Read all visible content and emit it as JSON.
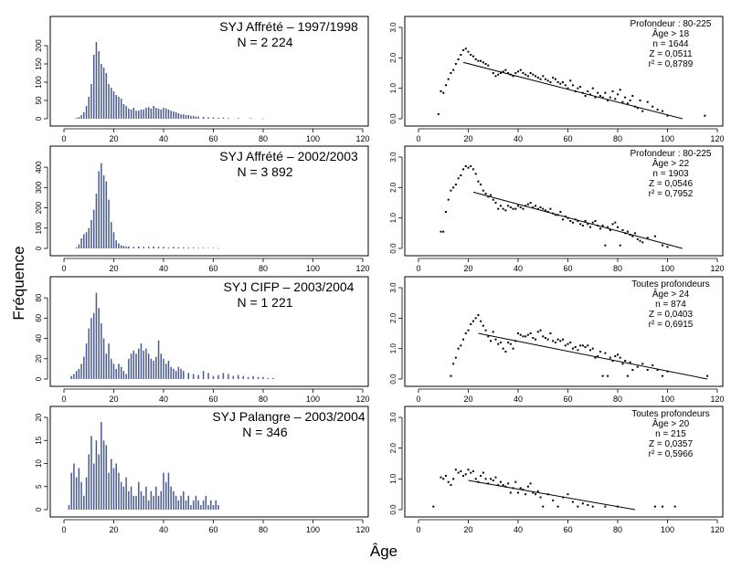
{
  "figure": {
    "ylabel": "Fréquence",
    "xlabel": "Âge"
  },
  "chart_data": [
    {
      "type": "bar",
      "title": "SYJ Affrété – 1997/1998",
      "subtitle": "N = 2 224",
      "xlim": [
        0,
        120
      ],
      "ylim": [
        0,
        250
      ],
      "xticks": [
        0,
        20,
        40,
        60,
        80,
        100,
        120
      ],
      "yticks": [
        0,
        50,
        100,
        150,
        200
      ],
      "x": [
        5,
        6,
        7,
        8,
        9,
        10,
        11,
        12,
        13,
        14,
        15,
        16,
        17,
        18,
        19,
        20,
        21,
        22,
        23,
        24,
        25,
        26,
        27,
        28,
        29,
        30,
        31,
        32,
        33,
        34,
        35,
        36,
        37,
        38,
        39,
        40,
        41,
        42,
        43,
        44,
        45,
        46,
        47,
        48,
        49,
        50,
        51,
        52,
        53,
        54,
        56,
        58,
        60,
        62,
        64,
        66,
        70,
        75,
        80
      ],
      "values": [
        2,
        5,
        10,
        18,
        35,
        60,
        95,
        175,
        210,
        185,
        150,
        140,
        125,
        95,
        85,
        75,
        65,
        60,
        55,
        40,
        35,
        28,
        25,
        30,
        22,
        22,
        25,
        25,
        30,
        32,
        28,
        35,
        30,
        28,
        25,
        30,
        28,
        25,
        22,
        20,
        18,
        15,
        12,
        12,
        10,
        10,
        8,
        8,
        6,
        6,
        5,
        4,
        4,
        3,
        3,
        2,
        2,
        2,
        1
      ]
    },
    {
      "type": "scatter",
      "annotation": [
        "Profondeur : 80-225",
        "Âge > 18",
        "n = 1644",
        "Z = 0,0511",
        "r² = 0,8789"
      ],
      "xlim": [
        0,
        120
      ],
      "ylim": [
        0,
        3
      ],
      "xticks": [
        0,
        20,
        40,
        60,
        80,
        100,
        120
      ],
      "yticks": [
        0.0,
        1.0,
        2.0,
        3.0
      ],
      "x": [
        8,
        9,
        10,
        11,
        12,
        13,
        14,
        15,
        16,
        17,
        18,
        19,
        20,
        21,
        22,
        23,
        24,
        25,
        26,
        27,
        28,
        30,
        31,
        32,
        33,
        34,
        35,
        36,
        37,
        38,
        39,
        40,
        41,
        42,
        43,
        44,
        45,
        46,
        47,
        48,
        49,
        50,
        51,
        52,
        53,
        54,
        55,
        56,
        57,
        58,
        59,
        60,
        61,
        62,
        63,
        64,
        65,
        66,
        67,
        68,
        69,
        70,
        71,
        72,
        73,
        74,
        75,
        76,
        77,
        78,
        79,
        80,
        81,
        82,
        83,
        84,
        85,
        86,
        87,
        88,
        89,
        90,
        92,
        94,
        96,
        98,
        100,
        115
      ],
      "y": [
        0.15,
        0.9,
        0.85,
        1.1,
        1.3,
        1.5,
        1.6,
        1.8,
        1.95,
        2.1,
        2.25,
        2.3,
        2.2,
        2.1,
        2.05,
        1.95,
        1.9,
        1.9,
        1.85,
        1.8,
        1.75,
        1.5,
        1.4,
        1.45,
        1.5,
        1.55,
        1.6,
        1.5,
        1.45,
        1.4,
        1.5,
        1.55,
        1.6,
        1.5,
        1.45,
        1.4,
        1.5,
        1.45,
        1.4,
        1.35,
        1.3,
        1.4,
        1.3,
        1.25,
        1.2,
        1.35,
        1.3,
        1.2,
        1.15,
        1.2,
        1.1,
        1.0,
        1.25,
        1.1,
        0.9,
        1.0,
        1.05,
        0.85,
        0.75,
        0.9,
        0.8,
        1.0,
        0.7,
        0.85,
        0.75,
        0.7,
        0.85,
        0.6,
        0.7,
        0.9,
        0.65,
        0.8,
        0.95,
        0.55,
        0.7,
        0.5,
        0.6,
        0.75,
        0.4,
        0.35,
        0.6,
        0.25,
        0.55,
        0.4,
        0.3,
        0.25,
        0.1,
        0.1
      ],
      "fit": {
        "x": [
          18,
          106
        ],
        "y": [
          1.85,
          0.0
        ]
      }
    },
    {
      "type": "bar",
      "title": "SYJ Affrété – 2002/2003",
      "subtitle": "N = 3 892",
      "xlim": [
        0,
        120
      ],
      "ylim": [
        0,
        450
      ],
      "xticks": [
        0,
        20,
        40,
        60,
        80,
        100,
        120
      ],
      "yticks": [
        0,
        100,
        200,
        300,
        400
      ],
      "x": [
        5,
        6,
        7,
        8,
        9,
        10,
        11,
        12,
        13,
        14,
        15,
        16,
        17,
        18,
        19,
        20,
        21,
        22,
        23,
        24,
        25,
        26,
        28,
        30,
        32,
        34,
        36,
        38,
        40,
        42,
        44,
        46,
        48,
        50,
        52,
        54,
        56,
        58,
        60,
        62
      ],
      "values": [
        5,
        20,
        50,
        70,
        80,
        100,
        140,
        190,
        270,
        380,
        420,
        360,
        330,
        240,
        130,
        80,
        40,
        25,
        15,
        12,
        10,
        10,
        8,
        10,
        8,
        8,
        10,
        8,
        8,
        5,
        8,
        6,
        5,
        4,
        4,
        3,
        3,
        2,
        2,
        1
      ]
    },
    {
      "type": "scatter",
      "annotation": [
        "Profondeur : 80-225",
        "Âge > 22",
        "n = 1903",
        "Z = 0,0546",
        "r² = 0,7952"
      ],
      "xlim": [
        0,
        120
      ],
      "ylim": [
        0,
        3
      ],
      "xticks": [
        0,
        20,
        40,
        60,
        80,
        100,
        120
      ],
      "yticks": [
        0.0,
        1.0,
        2.0,
        3.0
      ],
      "x": [
        9,
        10,
        11,
        12,
        13,
        14,
        15,
        16,
        17,
        18,
        19,
        20,
        21,
        22,
        23,
        24,
        25,
        26,
        27,
        28,
        29,
        30,
        31,
        32,
        33,
        34,
        35,
        36,
        37,
        38,
        39,
        40,
        41,
        42,
        43,
        44,
        45,
        46,
        47,
        48,
        49,
        50,
        51,
        52,
        53,
        54,
        55,
        56,
        57,
        58,
        59,
        60,
        61,
        62,
        63,
        64,
        65,
        66,
        67,
        68,
        69,
        70,
        71,
        72,
        73,
        74,
        75,
        76,
        77,
        78,
        79,
        80,
        81,
        82,
        83,
        84,
        85,
        86,
        87,
        88,
        89,
        90,
        92,
        95,
        98,
        100
      ],
      "y": [
        0.55,
        0.55,
        1.2,
        1.6,
        1.9,
        2.0,
        2.1,
        2.3,
        2.4,
        2.6,
        2.7,
        2.65,
        2.7,
        2.6,
        2.45,
        2.2,
        2.1,
        1.9,
        1.8,
        1.7,
        1.75,
        1.6,
        1.5,
        1.3,
        1.4,
        1.3,
        1.25,
        1.4,
        1.35,
        1.3,
        1.3,
        1.4,
        1.35,
        1.3,
        1.4,
        1.45,
        1.5,
        1.35,
        1.4,
        1.3,
        1.35,
        1.3,
        1.25,
        1.2,
        1.3,
        1.15,
        1.1,
        1.1,
        1.2,
        0.95,
        1.05,
        1.0,
        0.9,
        0.85,
        0.95,
        0.9,
        0.8,
        0.75,
        0.9,
        0.8,
        0.7,
        0.85,
        0.9,
        0.75,
        0.65,
        0.75,
        0.1,
        0.7,
        0.6,
        0.8,
        0.85,
        0.7,
        0.1,
        0.6,
        0.5,
        0.55,
        0.45,
        0.4,
        0.5,
        0.3,
        0.25,
        0.2,
        0.35,
        0.4,
        0.1,
        0.05
      ],
      "fit": {
        "x": [
          22,
          106
        ],
        "y": [
          1.85,
          0.0
        ]
      }
    },
    {
      "type": "bar",
      "title": "SYJ CIFP – 2003/2004",
      "subtitle": "N = 1 221",
      "xlim": [
        0,
        120
      ],
      "ylim": [
        0,
        90
      ],
      "xticks": [
        0,
        20,
        40,
        60,
        80,
        100,
        120
      ],
      "yticks": [
        0,
        20,
        40,
        60,
        80
      ],
      "x": [
        3,
        4,
        5,
        6,
        7,
        8,
        9,
        10,
        11,
        12,
        13,
        14,
        15,
        16,
        17,
        18,
        19,
        20,
        21,
        22,
        23,
        24,
        25,
        26,
        27,
        28,
        29,
        30,
        31,
        32,
        33,
        34,
        35,
        36,
        37,
        38,
        39,
        40,
        41,
        42,
        43,
        44,
        45,
        46,
        47,
        48,
        50,
        52,
        54,
        56,
        58,
        60,
        62,
        64,
        66,
        68,
        70,
        72,
        74,
        76,
        78,
        80,
        82,
        84
      ],
      "values": [
        3,
        5,
        8,
        10,
        15,
        22,
        35,
        50,
        60,
        65,
        85,
        70,
        55,
        40,
        25,
        35,
        20,
        15,
        10,
        15,
        12,
        8,
        5,
        20,
        25,
        28,
        25,
        30,
        35,
        28,
        30,
        25,
        20,
        18,
        22,
        38,
        25,
        20,
        15,
        18,
        12,
        10,
        8,
        12,
        10,
        8,
        6,
        5,
        4,
        8,
        6,
        3,
        4,
        6,
        5,
        3,
        4,
        3,
        2,
        3,
        2,
        2,
        1,
        1
      ]
    },
    {
      "type": "scatter",
      "annotation": [
        "Toutes profondeurs",
        "Âge > 24",
        "n = 874",
        "Z = 0,0403",
        "r² = 0,6915"
      ],
      "xlim": [
        0,
        120
      ],
      "ylim": [
        0,
        3
      ],
      "xticks": [
        0,
        20,
        40,
        60,
        80,
        100,
        120
      ],
      "yticks": [
        0.0,
        1.0,
        2.0,
        3.0
      ],
      "x": [
        13,
        14,
        15,
        16,
        17,
        18,
        19,
        20,
        21,
        22,
        23,
        24,
        25,
        26,
        27,
        28,
        29,
        30,
        31,
        32,
        33,
        34,
        35,
        36,
        37,
        38,
        39,
        40,
        41,
        42,
        43,
        44,
        45,
        46,
        47,
        48,
        49,
        50,
        51,
        52,
        53,
        54,
        55,
        56,
        57,
        58,
        59,
        60,
        61,
        62,
        63,
        64,
        65,
        66,
        67,
        68,
        69,
        70,
        71,
        72,
        73,
        74,
        75,
        76,
        77,
        78,
        79,
        80,
        81,
        82,
        83,
        84,
        85,
        86,
        88,
        90,
        92,
        94,
        96,
        98,
        100,
        116
      ],
      "y": [
        0.1,
        0.5,
        0.7,
        1.0,
        1.1,
        1.3,
        1.5,
        1.6,
        1.8,
        1.9,
        2.0,
        2.1,
        1.9,
        1.75,
        1.6,
        1.4,
        1.25,
        1.55,
        1.3,
        1.15,
        1.2,
        1.0,
        0.9,
        1.2,
        1.15,
        1.0,
        1.25,
        1.5,
        1.45,
        1.4,
        1.4,
        1.45,
        1.5,
        1.35,
        1.3,
        1.55,
        1.6,
        1.4,
        1.35,
        1.3,
        1.5,
        1.25,
        1.2,
        1.3,
        1.25,
        1.3,
        1.1,
        1.15,
        1.2,
        1.0,
        1.05,
        0.95,
        1.1,
        1.1,
        1.05,
        1.1,
        0.95,
        1.0,
        0.7,
        0.75,
        0.9,
        0.1,
        0.85,
        0.1,
        0.7,
        0.6,
        0.75,
        0.8,
        0.7,
        0.5,
        0.6,
        0.1,
        0.55,
        0.3,
        0.4,
        0.5,
        0.3,
        0.45,
        0.3,
        0.1,
        0.25,
        0.1
      ],
      "fit": {
        "x": [
          24,
          116
        ],
        "y": [
          1.5,
          0.0
        ]
      }
    },
    {
      "type": "bar",
      "title": "SYJ Palangre – 2003/2004",
      "subtitle": "N = 346",
      "xlim": [
        0,
        120
      ],
      "ylim": [
        0,
        20
      ],
      "xticks": [
        0,
        20,
        40,
        60,
        80,
        100,
        120
      ],
      "yticks": [
        0,
        5,
        10,
        15,
        20
      ],
      "x": [
        2,
        3,
        4,
        5,
        6,
        7,
        8,
        9,
        10,
        11,
        12,
        13,
        14,
        15,
        16,
        17,
        18,
        19,
        20,
        21,
        22,
        23,
        24,
        25,
        26,
        27,
        28,
        29,
        30,
        31,
        32,
        33,
        34,
        35,
        36,
        37,
        38,
        39,
        40,
        41,
        42,
        43,
        44,
        45,
        46,
        47,
        48,
        49,
        50,
        51,
        52,
        53,
        54,
        55,
        56,
        57,
        58,
        59,
        60,
        61,
        62
      ],
      "values": [
        1,
        8,
        10,
        7,
        9,
        6,
        3,
        7,
        12,
        16,
        10,
        15,
        12,
        19,
        15,
        14,
        8,
        11,
        9,
        10,
        8,
        6,
        5,
        7,
        4,
        5,
        3,
        3,
        6,
        4,
        3,
        5,
        2,
        4,
        3,
        5,
        3,
        4,
        8,
        6,
        8,
        5,
        4,
        3,
        2,
        3,
        4,
        2,
        3,
        1,
        2,
        3,
        2,
        1,
        2,
        3,
        1,
        2,
        1,
        2,
        1
      ]
    },
    {
      "type": "scatter",
      "annotation": [
        "Toutes profondeurs",
        "Âge > 20",
        "n = 215",
        "Z = 0,0357",
        "r² = 0,5966"
      ],
      "xlim": [
        0,
        120
      ],
      "ylim": [
        0,
        3
      ],
      "xticks": [
        0,
        20,
        40,
        60,
        80,
        100,
        120
      ],
      "yticks": [
        0.0,
        1.0,
        2.0,
        3.0
      ],
      "x": [
        6,
        9,
        10,
        11,
        12,
        13,
        14,
        15,
        16,
        17,
        18,
        19,
        20,
        21,
        22,
        23,
        24,
        25,
        26,
        27,
        28,
        29,
        30,
        31,
        32,
        33,
        34,
        35,
        36,
        37,
        38,
        39,
        40,
        41,
        42,
        43,
        44,
        45,
        46,
        47,
        48,
        49,
        50,
        52,
        54,
        56,
        58,
        60,
        62,
        64,
        66,
        68,
        70,
        75,
        80,
        95,
        98,
        103
      ],
      "y": [
        0.1,
        1.05,
        1.0,
        1.1,
        0.9,
        0.8,
        1.0,
        1.3,
        1.2,
        1.25,
        1.1,
        1.15,
        1.3,
        1.2,
        1.25,
        1.0,
        0.9,
        1.1,
        1.2,
        1.0,
        0.85,
        1.0,
        0.95,
        1.05,
        0.8,
        0.9,
        0.8,
        0.75,
        0.85,
        0.55,
        0.7,
        0.9,
        0.55,
        0.7,
        0.65,
        0.5,
        0.75,
        0.85,
        0.55,
        0.5,
        0.6,
        0.4,
        0.1,
        0.5,
        0.3,
        0.1,
        0.4,
        0.5,
        0.25,
        0.1,
        0.2,
        0.15,
        0.1,
        0.1,
        0.1,
        0.1,
        0.1,
        0.1
      ],
      "fit": {
        "x": [
          20,
          87
        ],
        "y": [
          0.95,
          0.0
        ]
      }
    }
  ]
}
